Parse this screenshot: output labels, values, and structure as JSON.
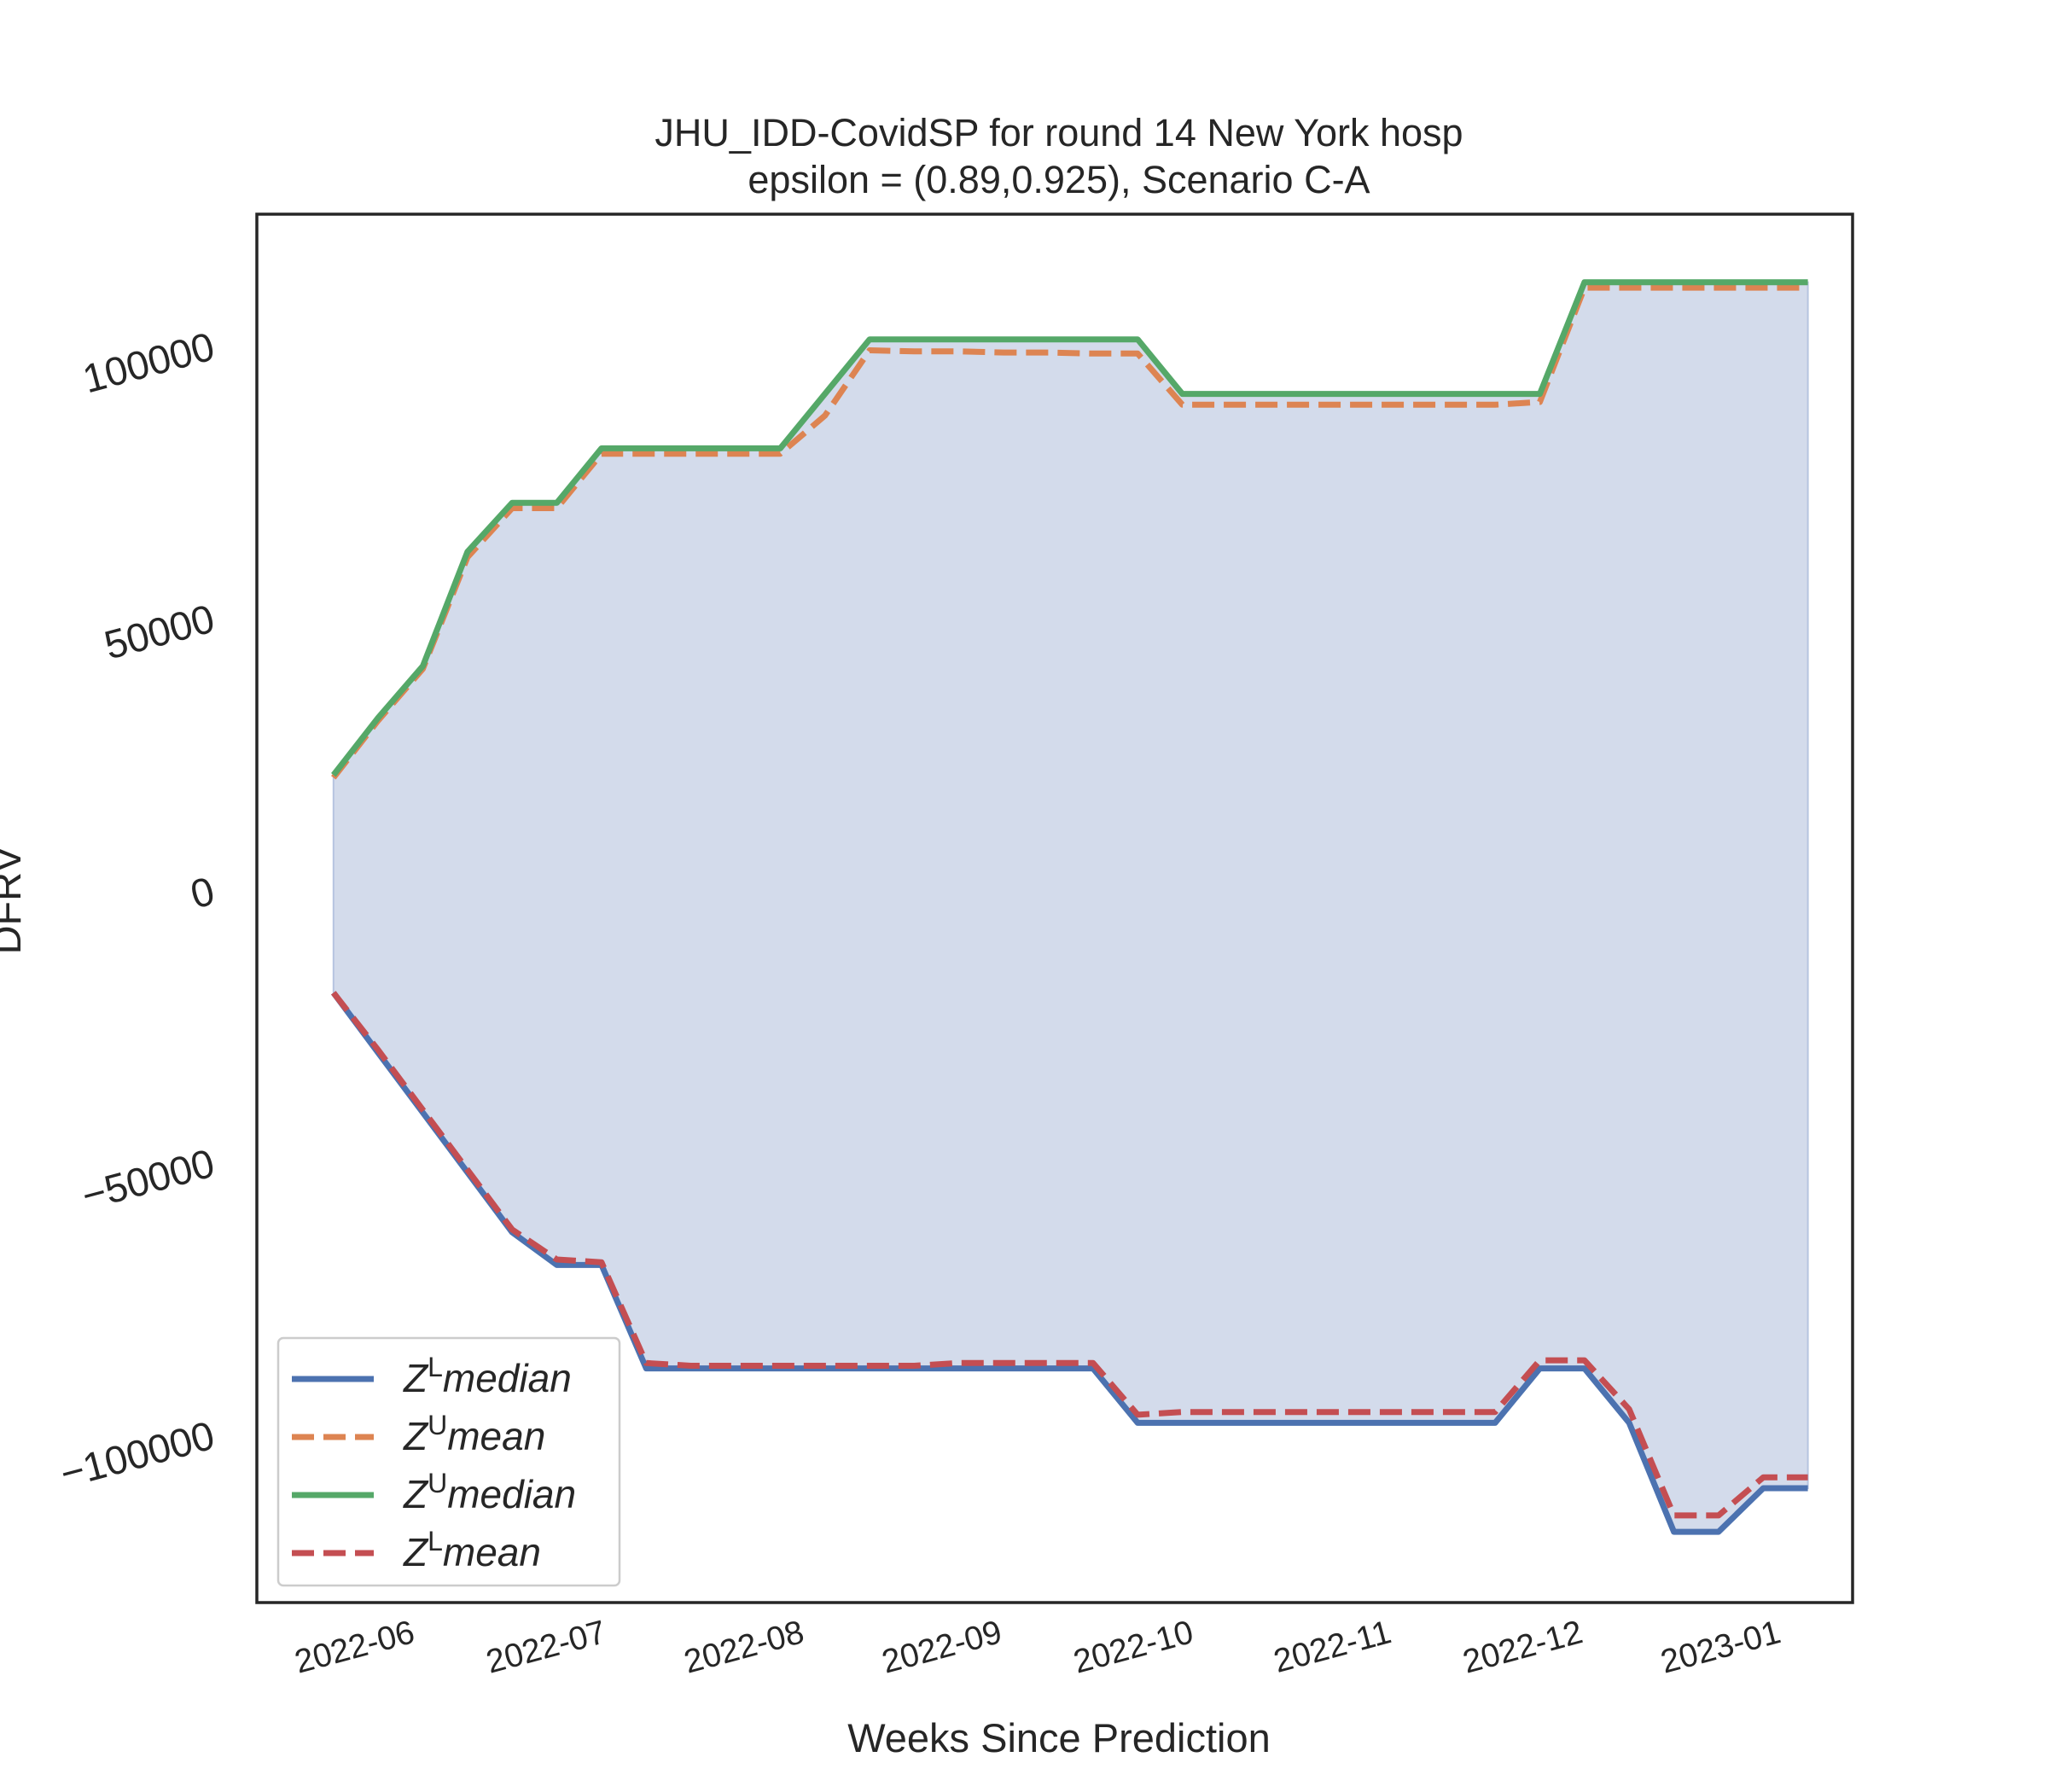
{
  "chart_data": {
    "type": "line",
    "title": "JHU_IDD-CovidSP for round 14 New York  hosp",
    "subtitle": "epsilon = (0.89,0.925), Scenario C-A",
    "xlabel": "Weeks Since Prediction",
    "ylabel": "DFRV",
    "x_type": "date",
    "xlim": [
      "2022-05-09",
      "2023-01-14"
    ],
    "ylim": [
      -131000,
      124000
    ],
    "x_ticks": [
      "2022-06-01",
      "2022-07-01",
      "2022-08-01",
      "2022-09-01",
      "2022-10-01",
      "2022-11-01",
      "2022-12-01",
      "2023-01-01"
    ],
    "x_tick_labels": [
      "2022-06",
      "2022-07",
      "2022-08",
      "2022-09",
      "2022-10",
      "2022-11",
      "2022-12",
      "2023-01"
    ],
    "y_ticks": [
      100000,
      50000,
      0,
      -50000,
      -100000
    ],
    "y_tick_labels": [
      "100000",
      "50000",
      "0",
      "−50000",
      "−100000"
    ],
    "legend_position": "lower-left",
    "grid": false,
    "fill": {
      "between": [
        "Z^L median",
        "Z^U median"
      ],
      "color": "#d3dbeb"
    },
    "x": [
      "2022-05-21",
      "2022-05-28",
      "2022-06-04",
      "2022-06-11",
      "2022-06-18",
      "2022-06-25",
      "2022-07-02",
      "2022-07-09",
      "2022-07-16",
      "2022-07-23",
      "2022-07-30",
      "2022-08-06",
      "2022-08-13",
      "2022-08-20",
      "2022-08-27",
      "2022-09-03",
      "2022-09-10",
      "2022-09-17",
      "2022-09-24",
      "2022-10-01",
      "2022-10-08",
      "2022-10-15",
      "2022-10-22",
      "2022-10-29",
      "2022-11-05",
      "2022-11-12",
      "2022-11-19",
      "2022-11-26",
      "2022-12-03",
      "2022-12-10",
      "2022-12-17",
      "2022-12-24",
      "2022-12-31",
      "2023-01-07"
    ],
    "series": [
      {
        "name": "Z^L median",
        "legend_label": {
          "base": "Z",
          "sup": "L",
          "text": "median"
        },
        "color": "#4c72b0",
        "dash": "solid",
        "values": [
          -19000,
          -30000,
          -41000,
          -52000,
          -63000,
          -69000,
          -69000,
          -88000,
          -88000,
          -88000,
          -88000,
          -88000,
          -88000,
          -88000,
          -88000,
          -88000,
          -88000,
          -88000,
          -98000,
          -98000,
          -98000,
          -98000,
          -98000,
          -98000,
          -98000,
          -98000,
          -98000,
          -88000,
          -88000,
          -98000,
          -118000,
          -118000,
          -110000,
          -110000
        ]
      },
      {
        "name": "Z^U mean",
        "legend_label": {
          "base": "Z",
          "sup": "U",
          "text": "mean"
        },
        "color": "#dd8452",
        "dash": "dashed",
        "values": [
          20500,
          31000,
          40500,
          61000,
          70000,
          70000,
          80000,
          80000,
          80000,
          80000,
          80000,
          87000,
          99000,
          98800,
          98800,
          98600,
          98600,
          98400,
          98400,
          89000,
          89000,
          89000,
          89000,
          89000,
          89000,
          89000,
          89000,
          89500,
          110500,
          110500,
          110500,
          110500,
          110500,
          110500
        ]
      },
      {
        "name": "Z^U median",
        "legend_label": {
          "base": "Z",
          "sup": "U",
          "text": "median"
        },
        "color": "#55a868",
        "dash": "solid",
        "values": [
          21000,
          31500,
          41000,
          62000,
          71000,
          71000,
          81000,
          81000,
          81000,
          81000,
          81000,
          91000,
          101000,
          101000,
          101000,
          101000,
          101000,
          101000,
          101000,
          91000,
          91000,
          91000,
          91000,
          91000,
          91000,
          91000,
          91000,
          91000,
          111500,
          111500,
          111500,
          111500,
          111500,
          111500
        ]
      },
      {
        "name": "Z^L mean",
        "legend_label": {
          "base": "Z",
          "sup": "L",
          "text": "mean"
        },
        "color": "#c44e52",
        "dash": "dashed",
        "values": [
          -19000,
          -29500,
          -40500,
          -51500,
          -62500,
          -68000,
          -68500,
          -87000,
          -87500,
          -87500,
          -87500,
          -87500,
          -87500,
          -87500,
          -87000,
          -87000,
          -87000,
          -87000,
          -96500,
          -96000,
          -96000,
          -96000,
          -96000,
          -96000,
          -96000,
          -96000,
          -96000,
          -86500,
          -86500,
          -95500,
          -115000,
          -115000,
          -108000,
          -108000
        ]
      }
    ]
  }
}
